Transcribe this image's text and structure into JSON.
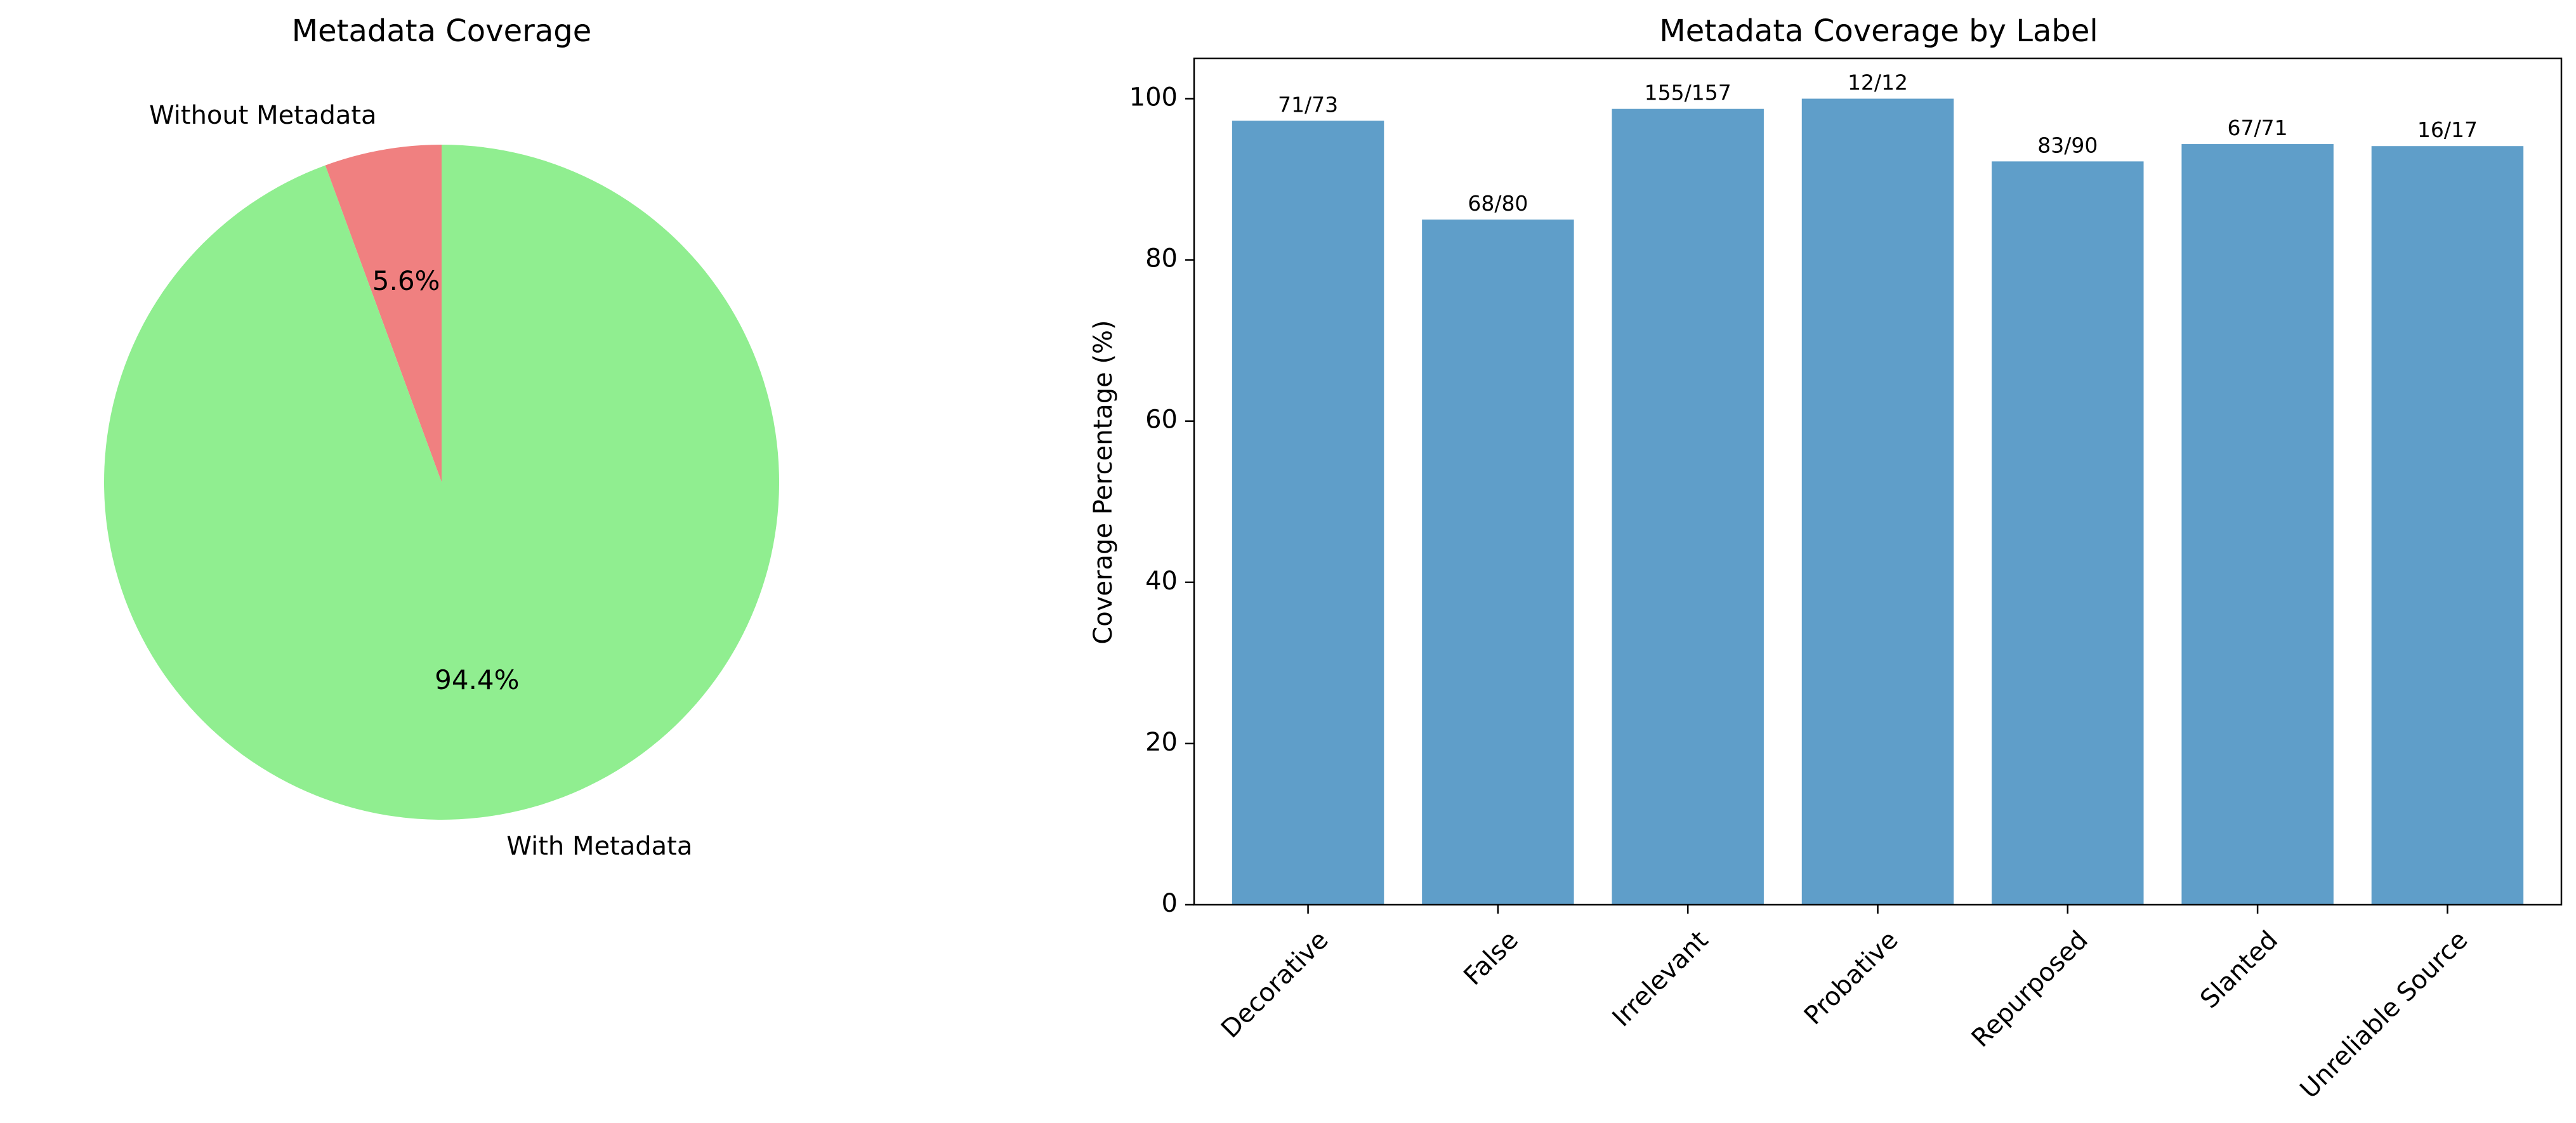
{
  "colors": {
    "with": "#90ee90",
    "without": "#f08080",
    "bar": "#5f9ec9",
    "axis": "#000000"
  },
  "pie": {
    "title": "Metadata Coverage",
    "chart_type": "pie",
    "start_angle": 90,
    "direction": "counterclockwise",
    "slices": [
      {
        "label": "Without Metadata",
        "value": 5.6,
        "pct_text": "5.6%",
        "color": "#f08080"
      },
      {
        "label": "With Metadata",
        "value": 94.4,
        "pct_text": "94.4%",
        "color": "#90ee90"
      }
    ]
  },
  "bar": {
    "title": "Metadata Coverage by Label",
    "ylabel": "Coverage Percentage (%)",
    "ylim": [
      0,
      105
    ],
    "yticks": [
      "0",
      "20",
      "40",
      "60",
      "80",
      "100"
    ],
    "grid": false
  },
  "chart_data": [
    {
      "type": "pie",
      "title": "Metadata Coverage",
      "categories": [
        "Without Metadata",
        "With Metadata"
      ],
      "values": [
        5.6,
        94.4
      ]
    },
    {
      "type": "bar",
      "title": "Metadata Coverage by Label",
      "xlabel": "",
      "ylabel": "Coverage Percentage (%)",
      "ylim": [
        0,
        105
      ],
      "categories": [
        "Decorative",
        "False",
        "Irrelevant",
        "Probative",
        "Repurposed",
        "Slanted",
        "Unreliable Source"
      ],
      "values": [
        97.26,
        85.0,
        98.73,
        100.0,
        92.22,
        94.37,
        94.12
      ],
      "data_labels": [
        "71/73",
        "68/80",
        "155/157",
        "12/12",
        "83/90",
        "67/71",
        "16/17"
      ]
    }
  ]
}
